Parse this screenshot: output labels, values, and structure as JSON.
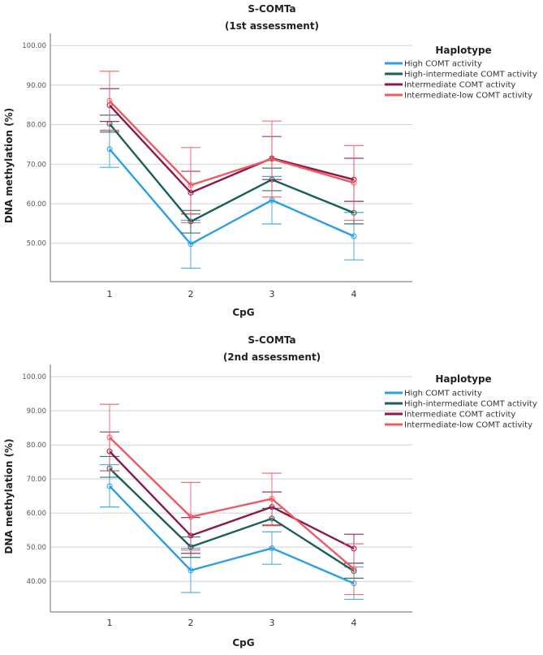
{
  "colors": {
    "High COMT activity": "#2b9fe0",
    "High-intermediate COMT activity": "#17605a",
    "Intermediate COMT activity": "#8b1a4a",
    "Intermediate-low COMT activity": "#ee5a64"
  },
  "chart_data": [
    {
      "type": "line",
      "title": "S-COMTa",
      "subtitle": "(1st assessment)",
      "xlabel": "CpG",
      "ylabel": "DNA methylation (%)",
      "categories": [
        "1",
        "2",
        "3",
        "4"
      ],
      "yticks": [
        "100.00",
        "90.00",
        "80.00",
        "70.00",
        "60.00",
        "50.00"
      ],
      "ylim": [
        40.3,
        103.1
      ],
      "grid": true,
      "legend_title": "Haplotype",
      "legend_position": "right",
      "error_bars": true,
      "series": [
        {
          "name": "High COMT activity",
          "values": [
            73.8,
            49.8,
            60.9,
            51.8
          ],
          "lower": [
            69.2,
            43.7,
            54.9,
            45.8
          ],
          "upper": [
            78.5,
            55.8,
            66.9,
            57.8
          ]
        },
        {
          "name": "High-intermediate COMT activity",
          "values": [
            80.2,
            55.5,
            66.1,
            57.7
          ],
          "lower": [
            78.1,
            52.6,
            63.3,
            54.9
          ],
          "upper": [
            82.4,
            58.3,
            69.0,
            60.6
          ]
        },
        {
          "name": "Intermediate COMT activity",
          "values": [
            84.9,
            62.8,
            71.5,
            66.1
          ],
          "lower": [
            80.8,
            57.4,
            66.1,
            60.6
          ],
          "upper": [
            89.1,
            68.2,
            77.0,
            71.5
          ]
        },
        {
          "name": "Intermediate-low COMT activity",
          "values": [
            86.0,
            64.7,
            71.3,
            65.3
          ],
          "lower": [
            78.6,
            55.2,
            61.7,
            55.8
          ],
          "upper": [
            93.5,
            74.2,
            80.9,
            74.7
          ]
        }
      ]
    },
    {
      "type": "line",
      "title": "S-COMTa",
      "subtitle": "(2nd assessment)",
      "xlabel": "CpG",
      "ylabel": "DNA methylation (%)",
      "categories": [
        "1",
        "2",
        "3",
        "4"
      ],
      "yticks": [
        "100.00",
        "90.00",
        "80.00",
        "70.00",
        "60.00",
        "50.00",
        "40.00"
      ],
      "ylim": [
        31.0,
        103.6
      ],
      "grid": true,
      "legend_title": "Haplotype",
      "legend_position": "right",
      "error_bars": true,
      "series": [
        {
          "name": "High COMT activity",
          "values": [
            67.9,
            43.2,
            49.7,
            39.4
          ],
          "lower": [
            61.8,
            36.7,
            45.0,
            34.7
          ],
          "upper": [
            74.2,
            49.6,
            54.5,
            44.2
          ]
        },
        {
          "name": "High-intermediate COMT activity",
          "values": [
            73.1,
            50.1,
            58.4,
            43.0
          ],
          "lower": [
            70.5,
            47.0,
            56.3,
            40.9
          ],
          "upper": [
            76.6,
            53.0,
            61.4,
            45.3
          ]
        },
        {
          "name": "Intermediate COMT activity",
          "values": [
            78.1,
            53.4,
            61.8,
            49.6
          ],
          "lower": [
            72.4,
            48.2,
            56.5,
            45.3
          ],
          "upper": [
            83.8,
            58.7,
            66.2,
            53.8
          ]
        },
        {
          "name": "Intermediate-low COMT activity",
          "values": [
            82.2,
            58.9,
            64.2,
            43.6
          ],
          "lower": [
            72.4,
            49.1,
            56.3,
            36.1
          ],
          "upper": [
            91.9,
            69.0,
            71.7,
            51.0
          ]
        }
      ]
    }
  ]
}
